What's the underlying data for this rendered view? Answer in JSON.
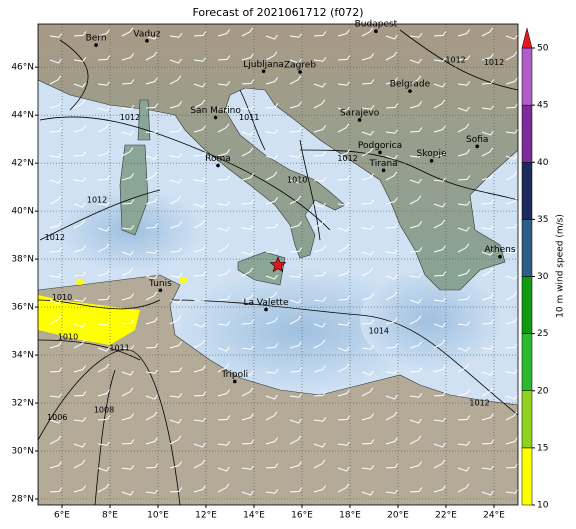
{
  "chart_data": {
    "type": "map",
    "title": "Forecast of 2021061712 (f072)",
    "xlim": [
      5,
      25
    ],
    "ylim": [
      27.75,
      47.8
    ],
    "xticks": [
      {
        "value": 6,
        "label": "6°E"
      },
      {
        "value": 8,
        "label": "8°E"
      },
      {
        "value": 10,
        "label": "10°E"
      },
      {
        "value": 12,
        "label": "12°E"
      },
      {
        "value": 14,
        "label": "14°E"
      },
      {
        "value": 16,
        "label": "16°E"
      },
      {
        "value": 18,
        "label": "18°E"
      },
      {
        "value": 20,
        "label": "20°E"
      },
      {
        "value": 22,
        "label": "22°E"
      },
      {
        "value": 24,
        "label": "24°E"
      }
    ],
    "yticks": [
      {
        "value": 28,
        "label": "28°N"
      },
      {
        "value": 30,
        "label": "30°N"
      },
      {
        "value": 32,
        "label": "32°N"
      },
      {
        "value": 34,
        "label": "34°N"
      },
      {
        "value": 36,
        "label": "36°N"
      },
      {
        "value": 38,
        "label": "38°N"
      },
      {
        "value": 40,
        "label": "40°N"
      },
      {
        "value": 42,
        "label": "42°N"
      },
      {
        "value": 44,
        "label": "44°N"
      },
      {
        "value": 46,
        "label": "46°N"
      }
    ],
    "grid": true,
    "cities": [
      {
        "name": "Bern",
        "lon": 7.42,
        "lat": 46.92
      },
      {
        "name": "Vaduz",
        "lon": 9.54,
        "lat": 47.1
      },
      {
        "name": "Budapest",
        "lon": 19.08,
        "lat": 47.5
      },
      {
        "name": "Ljubljana",
        "lon": 14.4,
        "lat": 45.83
      },
      {
        "name": "Zagreb",
        "lon": 15.92,
        "lat": 45.8
      },
      {
        "name": "San Marino",
        "lon": 12.4,
        "lat": 43.9
      },
      {
        "name": "Roma",
        "lon": 12.5,
        "lat": 41.9
      },
      {
        "name": "Sarajevo",
        "lon": 18.4,
        "lat": 43.8
      },
      {
        "name": "Belgrade",
        "lon": 20.5,
        "lat": 45.0
      },
      {
        "name": "Podgorica",
        "lon": 19.25,
        "lat": 42.45
      },
      {
        "name": "Tirana",
        "lon": 19.4,
        "lat": 41.7
      },
      {
        "name": "Skopje",
        "lon": 21.4,
        "lat": 42.1
      },
      {
        "name": "Sofia",
        "lon": 23.3,
        "lat": 42.7
      },
      {
        "name": "Athens",
        "lon": 24.25,
        "lat": 38.1
      },
      {
        "name": "Tunis",
        "lon": 10.1,
        "lat": 36.7
      },
      {
        "name": "La Valette",
        "lon": 14.5,
        "lat": 35.9
      },
      {
        "name": "Tripoli",
        "lon": 13.2,
        "lat": 32.9
      }
    ],
    "isobar_labels": [
      {
        "text": "1012",
        "lon": 8.83,
        "lat": 43.9
      },
      {
        "text": "1012",
        "lon": 7.46,
        "lat": 40.46
      },
      {
        "text": "1012",
        "lon": 5.7,
        "lat": 38.9
      },
      {
        "text": "1012",
        "lon": 17.9,
        "lat": 42.2
      },
      {
        "text": "1014",
        "lon": 19.2,
        "lat": 35.0
      },
      {
        "text": "1012",
        "lon": 23.4,
        "lat": 32.0
      },
      {
        "text": "1010",
        "lon": 6.0,
        "lat": 36.4
      },
      {
        "text": "1010",
        "lon": 6.25,
        "lat": 34.75
      },
      {
        "text": "1011",
        "lon": 8.4,
        "lat": 34.3
      },
      {
        "text": "1006",
        "lon": 5.8,
        "lat": 31.4
      },
      {
        "text": "1008",
        "lon": 7.75,
        "lat": 31.7
      },
      {
        "text": "1010",
        "lon": 15.8,
        "lat": 41.3
      },
      {
        "text": "1011",
        "lon": 13.8,
        "lat": 43.9
      },
      {
        "text": "1012",
        "lon": 22.4,
        "lat": 46.3
      },
      {
        "text": "1012",
        "lon": 24.0,
        "lat": 46.2
      }
    ],
    "marker": {
      "lon": 15.0,
      "lat": 37.75,
      "color": "#e8141c"
    },
    "colorbar": {
      "label": "10 m wind speed (m/s)",
      "ticks": [
        10,
        15,
        20,
        25,
        30,
        35,
        40,
        45,
        50
      ],
      "colors": [
        "#ffff00",
        "#8fd21e",
        "#2eb82e",
        "#119911",
        "#2c5f86",
        "#1c2a5c",
        "#7a2c9a",
        "#b25cc8"
      ],
      "extend_color": "#e31a1c"
    }
  }
}
